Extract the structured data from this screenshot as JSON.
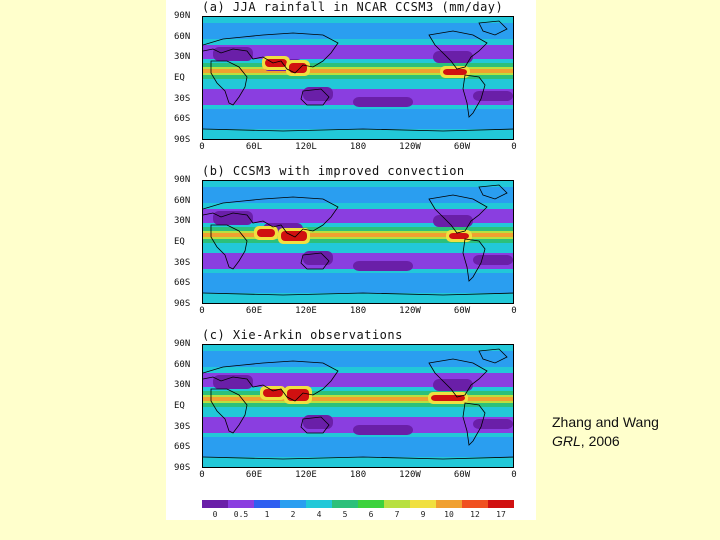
{
  "panels": [
    {
      "title": "(a) JJA rainfall in NCAR CCSM3 (mm/day)",
      "lat_labels": [
        "90N",
        "60N",
        "30N",
        "EQ",
        "30S",
        "60S",
        "90S"
      ],
      "lon_labels": [
        "0",
        "60L",
        "120L",
        "180",
        "120W",
        "60W",
        "0"
      ],
      "variant": "ccsm3"
    },
    {
      "title": "(b) CCSM3 with improved convection",
      "lat_labels": [
        "90N",
        "60N",
        "30N",
        "EQ",
        "30S",
        "60S",
        "90S"
      ],
      "lon_labels": [
        "0",
        "60E",
        "120E",
        "180",
        "120W",
        "60W",
        "0"
      ],
      "variant": "improved"
    },
    {
      "title": "(c) Xie-Arkin observations",
      "lat_labels": [
        "90N",
        "60N",
        "30N",
        "EQ",
        "30S",
        "60S",
        "90S"
      ],
      "lon_labels": [
        "0",
        "60E",
        "120E",
        "180",
        "120W",
        "60W",
        "0"
      ],
      "variant": "obs"
    }
  ],
  "colorbar": {
    "levels": [
      "0",
      "0.5",
      "1",
      "2",
      "4",
      "5",
      "6",
      "7",
      "9",
      "10",
      "12",
      "17"
    ],
    "colors": [
      "#6a1fa8",
      "#8a3ee0",
      "#2f5ff0",
      "#2a9ef0",
      "#22c8d8",
      "#2cc07a",
      "#3cd23c",
      "#b8e040",
      "#f0e040",
      "#f0a030",
      "#f05020",
      "#d01010"
    ]
  },
  "citation": {
    "authors": "Zhang and Wang",
    "journal": "GRL",
    "year": ", 2006"
  }
}
